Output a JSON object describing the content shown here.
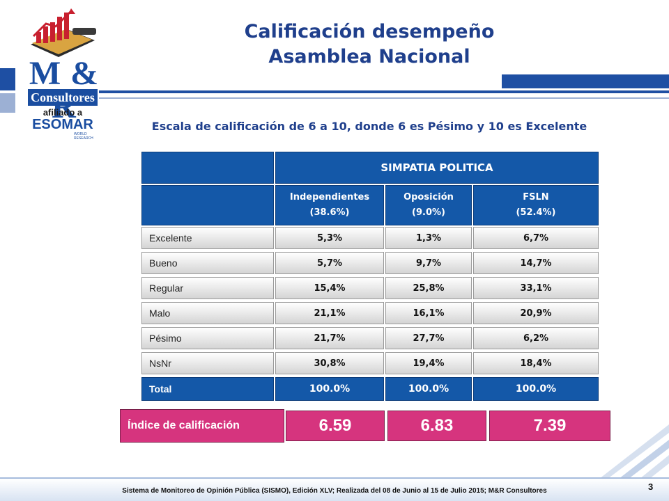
{
  "header": {
    "title_line1": "Calificación desempeño",
    "title_line2": "Asamblea Nacional",
    "subtitle": "Escala de calificación de 6 a 10, donde 6 es Pésimo y 10 es Excelente"
  },
  "logo": {
    "mr": "M & R",
    "consultores": "Consultores",
    "afiliado": "afiliado a",
    "esomar": "ESOMAR",
    "world": "WORLD RESEARCH"
  },
  "table": {
    "group_header": "SIMPATIA POLITICA",
    "columns": [
      {
        "name": "Independientes",
        "share": "(38.6%)"
      },
      {
        "name": "Oposición",
        "share": "(9.0%)"
      },
      {
        "name": "FSLN",
        "share": "(52.4%)"
      }
    ],
    "rows": [
      {
        "label": "Excelente",
        "values": [
          "5,3%",
          "1,3%",
          "6,7%"
        ]
      },
      {
        "label": "Bueno",
        "values": [
          "5,7%",
          "9,7%",
          "14,7%"
        ]
      },
      {
        "label": "Regular",
        "values": [
          "15,4%",
          "25,8%",
          "33,1%"
        ]
      },
      {
        "label": "Malo",
        "values": [
          "21,1%",
          "16,1%",
          "20,9%"
        ]
      },
      {
        "label": "Pésimo",
        "values": [
          "21,7%",
          "27,7%",
          "6,2%"
        ]
      },
      {
        "label": "NsNr",
        "values": [
          "30,8%",
          "19,4%",
          "18,4%"
        ]
      }
    ],
    "total": {
      "label": "Total",
      "values": [
        "100.0%",
        "100.0%",
        "100.0%"
      ]
    }
  },
  "index": {
    "label": "Índice de calificación",
    "values": [
      "6.59",
      "6.83",
      "7.39"
    ]
  },
  "footer": {
    "text": "Sistema de Monitoreo de Opinión Pública (SISMO), Edición XLV; Realizada del 08 de Junio al 15 de Julio 2015; M&R Consultores",
    "page": "3"
  },
  "colors": {
    "header_blue": "#1458a8",
    "title_blue": "#1f3f8c",
    "index_pink": "#d6347e"
  }
}
